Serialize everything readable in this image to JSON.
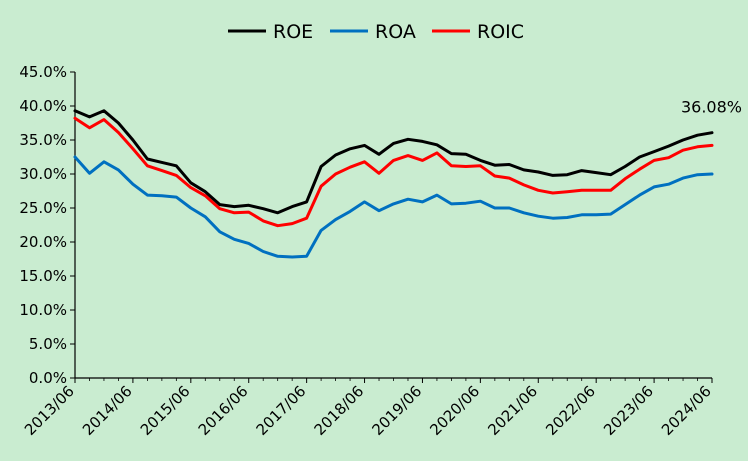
{
  "chart_data": {
    "type": "line",
    "title": "",
    "xlabel": "",
    "ylabel": "",
    "ylim": [
      0,
      45
    ],
    "y_ticks": [
      "0.0%",
      "5.0%",
      "10.0%",
      "15.0%",
      "20.0%",
      "25.0%",
      "30.0%",
      "35.0%",
      "40.0%",
      "45.0%"
    ],
    "y_tick_values": [
      0,
      5,
      10,
      15,
      20,
      25,
      30,
      35,
      40,
      45
    ],
    "x_tick_labels": [
      "2013/06",
      "2014/06",
      "2015/06",
      "2016/06",
      "2017/06",
      "2018/06",
      "2019/06",
      "2020/06",
      "2021/06",
      "2022/06",
      "2023/06",
      "2024/06"
    ],
    "x": [
      "2013/06",
      "2013/09",
      "2013/12",
      "2014/03",
      "2014/06",
      "2014/09",
      "2014/12",
      "2015/03",
      "2015/06",
      "2015/09",
      "2015/12",
      "2016/03",
      "2016/06",
      "2016/09",
      "2016/12",
      "2017/03",
      "2017/06",
      "2017/09",
      "2017/12",
      "2018/03",
      "2018/06",
      "2018/09",
      "2018/12",
      "2019/03",
      "2019/06",
      "2019/09",
      "2019/12",
      "2020/03",
      "2020/06",
      "2020/09",
      "2020/12",
      "2021/03",
      "2021/06",
      "2021/09",
      "2021/12",
      "2022/03",
      "2022/06",
      "2022/09",
      "2022/12",
      "2023/03",
      "2023/06",
      "2023/09",
      "2023/12",
      "2024/03",
      "2024/06"
    ],
    "legend_position": "top-center",
    "grid": false,
    "series": [
      {
        "name": "ROE",
        "color": "#000000",
        "values": [
          39.3,
          38.4,
          39.3,
          37.5,
          35.0,
          32.2,
          31.7,
          31.2,
          28.7,
          27.4,
          25.5,
          25.2,
          25.4,
          24.9,
          24.3,
          25.2,
          25.9,
          31.1,
          32.8,
          33.7,
          34.2,
          32.9,
          34.5,
          35.1,
          34.8,
          34.3,
          33.0,
          32.9,
          32.0,
          31.3,
          31.4,
          30.6,
          30.3,
          29.8,
          29.9,
          30.5,
          30.2,
          29.9,
          31.1,
          32.5,
          33.3,
          34.1,
          35.0,
          35.7,
          36.08
        ]
      },
      {
        "name": "ROA",
        "color": "#0070c0",
        "values": [
          32.5,
          30.1,
          31.8,
          30.6,
          28.5,
          26.9,
          26.8,
          26.6,
          25.0,
          23.7,
          21.5,
          20.4,
          19.8,
          18.6,
          17.9,
          17.8,
          17.9,
          21.7,
          23.3,
          24.5,
          25.9,
          24.6,
          25.6,
          26.3,
          25.9,
          26.9,
          25.6,
          25.7,
          26.0,
          25.0,
          25.0,
          24.3,
          23.8,
          23.5,
          23.6,
          24.0,
          24.0,
          24.1,
          25.5,
          26.9,
          28.1,
          28.5,
          29.4,
          29.9,
          30.0
        ]
      },
      {
        "name": "ROIC",
        "color": "#ff0000",
        "values": [
          38.2,
          36.8,
          38.0,
          36.1,
          33.7,
          31.2,
          30.5,
          29.8,
          28.0,
          26.8,
          24.9,
          24.3,
          24.4,
          23.1,
          22.4,
          22.7,
          23.5,
          28.2,
          30.0,
          31.0,
          31.8,
          30.1,
          32.0,
          32.7,
          32.0,
          33.1,
          31.2,
          31.1,
          31.2,
          29.7,
          29.4,
          28.4,
          27.6,
          27.2,
          27.4,
          27.6,
          27.6,
          27.6,
          29.3,
          30.7,
          32.0,
          32.4,
          33.5,
          34.0,
          34.2
        ]
      }
    ],
    "annotation": {
      "text": "36.08%",
      "series": "ROE",
      "x": "2024/06",
      "y": 36.08
    }
  }
}
